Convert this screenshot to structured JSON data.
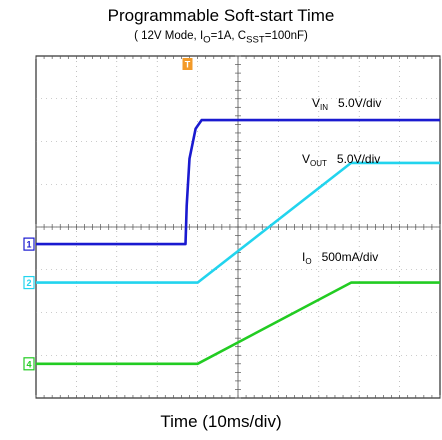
{
  "chart_data": {
    "type": "line",
    "title": "Programmable Soft-start Time",
    "subtitle": "( 12V Mode, I",
    "subtitle_parts": [
      "( 12V Mode, I",
      "O",
      "=1A, C",
      "SST",
      "=100nF)"
    ],
    "xlabel": "Time (10ms/div)",
    "grid": true,
    "x_unit": "div",
    "xlim": [
      0,
      10
    ],
    "ylim": [
      -4,
      4
    ],
    "trigger_marker": "T",
    "series": [
      {
        "name": "VIN",
        "channel": "1",
        "color": "#1a1ad0",
        "label_main": "V",
        "label_sub": "IN",
        "scale": "5.0V/div",
        "x": [
          0,
          3.7,
          3.73,
          3.8,
          3.95,
          4.1,
          4.3,
          10
        ],
        "y": [
          -0.4,
          -0.4,
          0.5,
          1.6,
          2.3,
          2.5,
          2.5,
          2.5
        ]
      },
      {
        "name": "VOUT",
        "channel": "2",
        "color": "#22d4ee",
        "label_main": "V",
        "label_sub": "OUT",
        "scale": "5.0V/div",
        "x": [
          0,
          4.0,
          7.8,
          10
        ],
        "y": [
          -1.3,
          -1.3,
          1.5,
          1.5
        ]
      },
      {
        "name": "IO",
        "channel": "4",
        "color": "#22cc22",
        "label_main": "I",
        "label_sub": "O",
        "scale": "500mA/div",
        "x": [
          0,
          4.0,
          7.8,
          10
        ],
        "y": [
          -3.2,
          -3.2,
          -1.3,
          -1.3
        ]
      }
    ]
  }
}
